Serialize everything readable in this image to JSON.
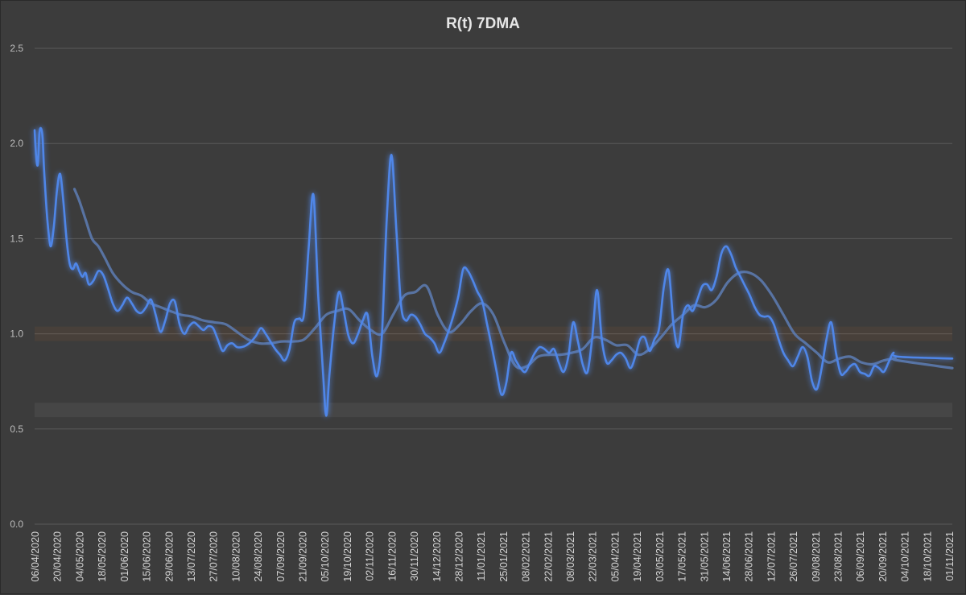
{
  "chart_data": {
    "type": "line",
    "title": "R(t) 7DMA",
    "xlabel": "",
    "ylabel": "",
    "ylim": [
      0,
      2.5
    ],
    "yticks": [
      "0.0",
      "0.5",
      "1.0",
      "1.5",
      "2.0",
      "2.5"
    ],
    "grid": true,
    "legend": "none",
    "x_tick_labels": [
      "06/04/2020",
      "20/04/2020",
      "04/05/2020",
      "18/05/2020",
      "01/06/2020",
      "15/06/2020",
      "29/06/2020",
      "13/07/2020",
      "27/07/2020",
      "10/08/2020",
      "24/08/2020",
      "07/09/2020",
      "21/09/2020",
      "05/10/2020",
      "19/10/2020",
      "02/11/2020",
      "16/11/2020",
      "30/11/2020",
      "14/12/2020",
      "28/12/2020",
      "11/01/2021",
      "25/01/2021",
      "08/02/2021",
      "22/02/2021",
      "08/03/2021",
      "22/03/2021",
      "05/04/2021",
      "19/04/2021",
      "03/05/2021",
      "17/05/2021",
      "31/05/2021",
      "14/06/2021",
      "28/06/2021",
      "12/07/2021",
      "26/07/2021",
      "09/08/2021",
      "23/08/2021",
      "06/09/2021",
      "20/09/2021",
      "04/10/2021",
      "18/10/2021",
      "01/11/2021"
    ],
    "x_start": "06/04/2020",
    "x_end": "03/11/2021",
    "series": [
      {
        "color": "#4f86e8",
        "points": [
          [
            "06/04/2020",
            2.07
          ],
          [
            "07/04/2020",
            1.93
          ],
          [
            "08/04/2020",
            1.89
          ],
          [
            "09/04/2020",
            2.05
          ],
          [
            "10/04/2020",
            2.08
          ],
          [
            "11/04/2020",
            2.03
          ],
          [
            "12/04/2020",
            1.85
          ],
          [
            "14/04/2020",
            1.6
          ],
          [
            "16/04/2020",
            1.46
          ],
          [
            "18/04/2020",
            1.56
          ],
          [
            "20/04/2020",
            1.75
          ],
          [
            "22/04/2020",
            1.84
          ],
          [
            "24/04/2020",
            1.7
          ],
          [
            "26/04/2020",
            1.5
          ],
          [
            "28/04/2020",
            1.37
          ],
          [
            "30/04/2020",
            1.34
          ],
          [
            "02/05/2020",
            1.37
          ],
          [
            "04/05/2020",
            1.33
          ],
          [
            "06/05/2020",
            1.3
          ],
          [
            "08/05/2020",
            1.32
          ],
          [
            "10/05/2020",
            1.26
          ],
          [
            "13/05/2020",
            1.28
          ],
          [
            "16/05/2020",
            1.33
          ],
          [
            "19/05/2020",
            1.31
          ],
          [
            "22/05/2020",
            1.24
          ],
          [
            "25/05/2020",
            1.16
          ],
          [
            "28/05/2020",
            1.12
          ],
          [
            "31/05/2020",
            1.15
          ],
          [
            "03/06/2020",
            1.19
          ],
          [
            "06/06/2020",
            1.16
          ],
          [
            "09/06/2020",
            1.12
          ],
          [
            "12/06/2020",
            1.11
          ],
          [
            "15/06/2020",
            1.14
          ],
          [
            "18/06/2020",
            1.18
          ],
          [
            "21/06/2020",
            1.1
          ],
          [
            "24/06/2020",
            1.01
          ],
          [
            "27/06/2020",
            1.07
          ],
          [
            "30/06/2020",
            1.16
          ],
          [
            "03/07/2020",
            1.17
          ],
          [
            "06/07/2020",
            1.05
          ],
          [
            "09/07/2020",
            1.0
          ],
          [
            "12/07/2020",
            1.04
          ],
          [
            "15/07/2020",
            1.06
          ],
          [
            "18/07/2020",
            1.04
          ],
          [
            "21/07/2020",
            1.02
          ],
          [
            "24/07/2020",
            1.04
          ],
          [
            "27/07/2020",
            1.03
          ],
          [
            "30/07/2020",
            0.97
          ],
          [
            "02/08/2020",
            0.91
          ],
          [
            "05/08/2020",
            0.94
          ],
          [
            "08/08/2020",
            0.95
          ],
          [
            "11/08/2020",
            0.93
          ],
          [
            "14/08/2020",
            0.93
          ],
          [
            "17/08/2020",
            0.94
          ],
          [
            "20/08/2020",
            0.96
          ],
          [
            "23/08/2020",
            0.99
          ],
          [
            "26/08/2020",
            1.03
          ],
          [
            "29/08/2020",
            1.0
          ],
          [
            "01/09/2020",
            0.96
          ],
          [
            "04/09/2020",
            0.92
          ],
          [
            "07/09/2020",
            0.89
          ],
          [
            "10/09/2020",
            0.86
          ],
          [
            "13/09/2020",
            0.92
          ],
          [
            "16/09/2020",
            1.06
          ],
          [
            "19/09/2020",
            1.08
          ],
          [
            "22/09/2020",
            1.1
          ],
          [
            "25/09/2020",
            1.45
          ],
          [
            "28/09/2020",
            1.73
          ],
          [
            "01/10/2020",
            1.2
          ],
          [
            "04/10/2020",
            0.8
          ],
          [
            "06/10/2020",
            0.57
          ],
          [
            "08/10/2020",
            0.78
          ],
          [
            "11/10/2020",
            1.05
          ],
          [
            "14/10/2020",
            1.22
          ],
          [
            "17/10/2020",
            1.12
          ],
          [
            "20/10/2020",
            0.99
          ],
          [
            "23/10/2020",
            0.95
          ],
          [
            "26/10/2020",
            1.0
          ],
          [
            "29/10/2020",
            1.07
          ],
          [
            "01/11/2020",
            1.1
          ],
          [
            "04/11/2020",
            0.88
          ],
          [
            "07/11/2020",
            0.78
          ],
          [
            "10/11/2020",
            1.0
          ],
          [
            "13/11/2020",
            1.6
          ],
          [
            "16/11/2020",
            1.94
          ],
          [
            "19/11/2020",
            1.55
          ],
          [
            "22/11/2020",
            1.15
          ],
          [
            "25/11/2020",
            1.07
          ],
          [
            "28/11/2020",
            1.1
          ],
          [
            "01/12/2020",
            1.09
          ],
          [
            "04/12/2020",
            1.05
          ],
          [
            "07/12/2020",
            1.0
          ],
          [
            "10/12/2020",
            0.98
          ],
          [
            "13/12/2020",
            0.95
          ],
          [
            "16/12/2020",
            0.9
          ],
          [
            "19/12/2020",
            0.95
          ],
          [
            "22/12/2020",
            1.02
          ],
          [
            "25/12/2020",
            1.1
          ],
          [
            "28/12/2020",
            1.2
          ],
          [
            "31/12/2020",
            1.34
          ],
          [
            "03/01/2021",
            1.33
          ],
          [
            "06/01/2021",
            1.28
          ],
          [
            "09/01/2021",
            1.22
          ],
          [
            "12/01/2021",
            1.17
          ],
          [
            "15/01/2021",
            1.05
          ],
          [
            "18/01/2021",
            0.93
          ],
          [
            "21/01/2021",
            0.8
          ],
          [
            "24/01/2021",
            0.68
          ],
          [
            "27/01/2021",
            0.74
          ],
          [
            "30/01/2021",
            0.9
          ],
          [
            "02/02/2021",
            0.86
          ],
          [
            "05/02/2021",
            0.82
          ],
          [
            "08/02/2021",
            0.8
          ],
          [
            "11/02/2021",
            0.85
          ],
          [
            "14/02/2021",
            0.9
          ],
          [
            "17/02/2021",
            0.93
          ],
          [
            "20/02/2021",
            0.92
          ],
          [
            "23/02/2021",
            0.9
          ],
          [
            "26/02/2021",
            0.92
          ],
          [
            "01/03/2021",
            0.85
          ],
          [
            "04/03/2021",
            0.8
          ],
          [
            "07/03/2021",
            0.88
          ],
          [
            "10/03/2021",
            1.06
          ],
          [
            "13/03/2021",
            0.96
          ],
          [
            "16/03/2021",
            0.84
          ],
          [
            "19/03/2021",
            0.8
          ],
          [
            "22/03/2021",
            0.98
          ],
          [
            "25/03/2021",
            1.23
          ],
          [
            "28/03/2021",
            0.97
          ],
          [
            "31/03/2021",
            0.85
          ],
          [
            "03/04/2021",
            0.86
          ],
          [
            "06/04/2021",
            0.89
          ],
          [
            "09/04/2021",
            0.9
          ],
          [
            "12/04/2021",
            0.87
          ],
          [
            "15/04/2021",
            0.82
          ],
          [
            "18/04/2021",
            0.88
          ],
          [
            "21/04/2021",
            0.97
          ],
          [
            "24/04/2021",
            0.98
          ],
          [
            "27/04/2021",
            0.91
          ],
          [
            "30/04/2021",
            0.97
          ],
          [
            "03/05/2021",
            1.03
          ],
          [
            "06/05/2021",
            1.25
          ],
          [
            "09/05/2021",
            1.33
          ],
          [
            "12/05/2021",
            1.05
          ],
          [
            "15/05/2021",
            0.93
          ],
          [
            "18/05/2021",
            1.1
          ],
          [
            "21/05/2021",
            1.15
          ],
          [
            "24/05/2021",
            1.12
          ],
          [
            "27/05/2021",
            1.18
          ],
          [
            "30/05/2021",
            1.25
          ],
          [
            "02/06/2021",
            1.26
          ],
          [
            "05/06/2021",
            1.23
          ],
          [
            "08/06/2021",
            1.3
          ],
          [
            "11/06/2021",
            1.42
          ],
          [
            "14/06/2021",
            1.46
          ],
          [
            "17/06/2021",
            1.42
          ],
          [
            "20/06/2021",
            1.35
          ],
          [
            "23/06/2021",
            1.3
          ],
          [
            "26/06/2021",
            1.25
          ],
          [
            "29/06/2021",
            1.2
          ],
          [
            "02/07/2021",
            1.14
          ],
          [
            "05/07/2021",
            1.1
          ],
          [
            "08/07/2021",
            1.09
          ],
          [
            "11/07/2021",
            1.09
          ],
          [
            "14/07/2021",
            1.05
          ],
          [
            "17/07/2021",
            0.97
          ],
          [
            "20/07/2021",
            0.9
          ],
          [
            "23/07/2021",
            0.86
          ],
          [
            "26/07/2021",
            0.83
          ],
          [
            "29/07/2021",
            0.88
          ],
          [
            "01/08/2021",
            0.93
          ],
          [
            "04/08/2021",
            0.88
          ],
          [
            "07/08/2021",
            0.75
          ],
          [
            "10/08/2021",
            0.71
          ],
          [
            "13/08/2021",
            0.82
          ],
          [
            "16/08/2021",
            0.97
          ],
          [
            "19/08/2021",
            1.06
          ],
          [
            "22/08/2021",
            0.9
          ],
          [
            "25/08/2021",
            0.79
          ],
          [
            "28/08/2021",
            0.8
          ],
          [
            "31/08/2021",
            0.83
          ],
          [
            "03/09/2021",
            0.84
          ],
          [
            "06/09/2021",
            0.8
          ],
          [
            "09/09/2021",
            0.79
          ],
          [
            "12/09/2021",
            0.78
          ],
          [
            "15/09/2021",
            0.83
          ],
          [
            "18/09/2021",
            0.82
          ],
          [
            "21/09/2021",
            0.8
          ],
          [
            "24/09/2021",
            0.85
          ],
          [
            "27/09/2021",
            0.9
          ],
          [
            "30/09/2021",
            0.88
          ],
          [
            "03/11/2021",
            0.87
          ]
        ]
      },
      {
        "color": "#5d7db4",
        "points": [
          [
            "01/05/2020",
            1.76
          ],
          [
            "04/05/2020",
            1.7
          ],
          [
            "08/05/2020",
            1.6
          ],
          [
            "12/05/2020",
            1.5
          ],
          [
            "16/05/2020",
            1.46
          ],
          [
            "20/05/2020",
            1.4
          ],
          [
            "25/05/2020",
            1.32
          ],
          [
            "31/05/2020",
            1.26
          ],
          [
            "06/06/2020",
            1.22
          ],
          [
            "12/06/2020",
            1.2
          ],
          [
            "18/06/2020",
            1.16
          ],
          [
            "24/06/2020",
            1.14
          ],
          [
            "30/06/2020",
            1.12
          ],
          [
            "07/07/2020",
            1.1
          ],
          [
            "14/07/2020",
            1.09
          ],
          [
            "21/07/2020",
            1.07
          ],
          [
            "28/07/2020",
            1.06
          ],
          [
            "04/08/2020",
            1.05
          ],
          [
            "11/08/2020",
            1.01
          ],
          [
            "18/08/2020",
            0.97
          ],
          [
            "25/08/2020",
            0.95
          ],
          [
            "01/09/2020",
            0.95
          ],
          [
            "08/09/2020",
            0.96
          ],
          [
            "15/09/2020",
            0.96
          ],
          [
            "22/09/2020",
            0.97
          ],
          [
            "29/09/2020",
            1.03
          ],
          [
            "06/10/2020",
            1.1
          ],
          [
            "13/10/2020",
            1.12
          ],
          [
            "20/10/2020",
            1.13
          ],
          [
            "27/10/2020",
            1.07
          ],
          [
            "03/11/2020",
            1.02
          ],
          [
            "10/11/2020",
            1.0
          ],
          [
            "17/11/2020",
            1.1
          ],
          [
            "24/11/2020",
            1.2
          ],
          [
            "01/12/2020",
            1.22
          ],
          [
            "08/12/2020",
            1.25
          ],
          [
            "15/12/2020",
            1.1
          ],
          [
            "22/12/2020",
            1.01
          ],
          [
            "29/12/2020",
            1.05
          ],
          [
            "05/01/2021",
            1.12
          ],
          [
            "12/01/2021",
            1.16
          ],
          [
            "19/01/2021",
            1.1
          ],
          [
            "26/01/2021",
            0.95
          ],
          [
            "02/02/2021",
            0.83
          ],
          [
            "09/02/2021",
            0.83
          ],
          [
            "16/02/2021",
            0.88
          ],
          [
            "23/02/2021",
            0.89
          ],
          [
            "02/03/2021",
            0.89
          ],
          [
            "09/03/2021",
            0.9
          ],
          [
            "16/03/2021",
            0.92
          ],
          [
            "23/03/2021",
            0.98
          ],
          [
            "30/03/2021",
            0.97
          ],
          [
            "06/04/2021",
            0.94
          ],
          [
            "13/04/2021",
            0.94
          ],
          [
            "20/04/2021",
            0.89
          ],
          [
            "27/04/2021",
            0.92
          ],
          [
            "04/05/2021",
            0.98
          ],
          [
            "11/05/2021",
            1.05
          ],
          [
            "18/05/2021",
            1.1
          ],
          [
            "25/05/2021",
            1.15
          ],
          [
            "01/06/2021",
            1.14
          ],
          [
            "08/06/2021",
            1.18
          ],
          [
            "15/06/2021",
            1.27
          ],
          [
            "22/06/2021",
            1.32
          ],
          [
            "29/06/2021",
            1.32
          ],
          [
            "06/07/2021",
            1.28
          ],
          [
            "13/07/2021",
            1.2
          ],
          [
            "20/07/2021",
            1.1
          ],
          [
            "27/07/2021",
            1.0
          ],
          [
            "03/08/2021",
            0.95
          ],
          [
            "10/08/2021",
            0.9
          ],
          [
            "17/08/2021",
            0.85
          ],
          [
            "24/08/2021",
            0.87
          ],
          [
            "31/08/2021",
            0.88
          ],
          [
            "07/09/2021",
            0.85
          ],
          [
            "14/09/2021",
            0.84
          ],
          [
            "21/09/2021",
            0.86
          ],
          [
            "28/09/2021",
            0.87
          ],
          [
            "30/09/2021",
            0.86
          ],
          [
            "03/11/2021",
            0.82
          ]
        ]
      }
    ],
    "reference_lines": [
      {
        "y": 1.0,
        "color": "#f07a2a"
      },
      {
        "y": 0.6,
        "color": "#d9d9d9"
      }
    ]
  }
}
